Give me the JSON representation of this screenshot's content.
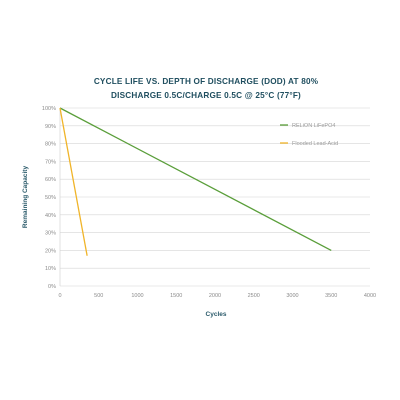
{
  "chart_data": {
    "type": "line",
    "title_lines": [
      "CYCLE LIFE VS. DEPTH OF DISCHARGE (DOD) AT 80%",
      "DISCHARGE 0.5C/CHARGE 0.5C @ 25°C (77°F)"
    ],
    "xlabel": "Cycles",
    "ylabel": "Remaining Capacity",
    "xlim": [
      0,
      4000
    ],
    "ylim": [
      0,
      100
    ],
    "x_ticks": [
      0,
      500,
      1000,
      1500,
      2000,
      2500,
      3000,
      3500,
      4000
    ],
    "x_tick_labels": [
      "0",
      "500",
      "1000",
      "1500",
      "2000",
      "2500",
      "3000",
      "3500",
      "4000"
    ],
    "y_ticks": [
      0,
      10,
      20,
      30,
      40,
      50,
      60,
      70,
      80,
      90,
      100
    ],
    "y_tick_labels": [
      "0%",
      "10%",
      "20%",
      "30%",
      "40%",
      "50%",
      "60%",
      "70%",
      "80%",
      "90%",
      "100%"
    ],
    "grid": "horizontal",
    "legend_position": "top-right",
    "series": [
      {
        "name": "RELiON LiFePO4",
        "color": "#5a9e3a",
        "x": [
          0,
          3500
        ],
        "y": [
          100,
          20
        ]
      },
      {
        "name": "Flooded Lead-Acid",
        "color": "#f0b429",
        "x": [
          0,
          350
        ],
        "y": [
          100,
          17
        ]
      }
    ]
  }
}
